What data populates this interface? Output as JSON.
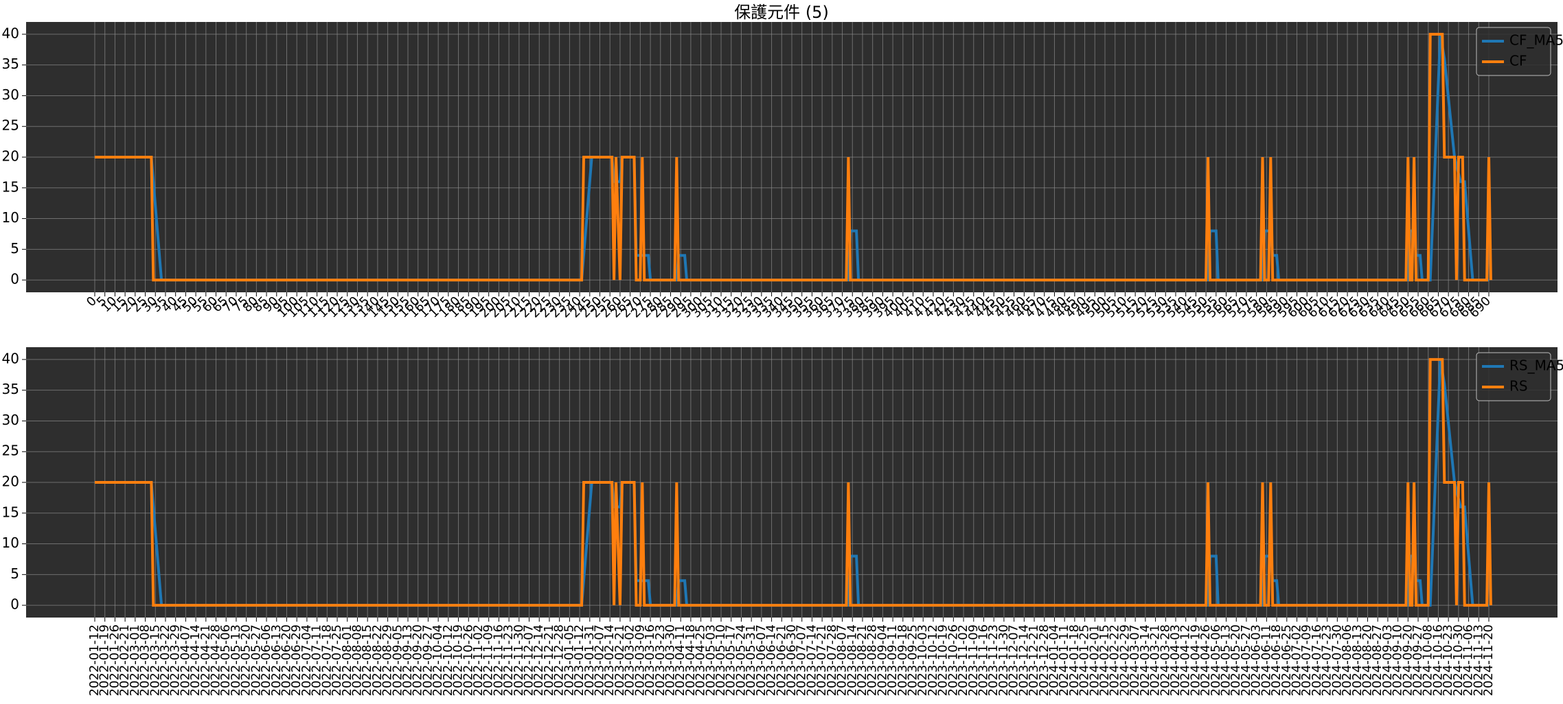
{
  "figure": {
    "title": "保護元件 (5)"
  },
  "colors": {
    "panel_bg": "#2e2e2e",
    "grid": "#8c8c8c",
    "ma_line": "#1f77b4",
    "raw_line": "#ff7f0e",
    "legend_bg": "#2e2e2e",
    "legend_edge": "#bdbdbd",
    "legend_text": "#000000"
  },
  "chart_data": [
    {
      "type": "line",
      "title": "保護元件 (5)",
      "xlabel": "",
      "ylabel": "",
      "x_range": [
        0,
        690
      ],
      "ylim": [
        -2,
        42
      ],
      "y_ticks": [
        0,
        5,
        10,
        15,
        20,
        25,
        30,
        35,
        40
      ],
      "grid": true,
      "legend_position": "top-right",
      "x_tick_labels": [
        "0",
        "5",
        "10",
        "15",
        "20",
        "25",
        "30",
        "35",
        "40",
        "45",
        "50",
        "55",
        "60",
        "65",
        "70",
        "75",
        "80",
        "85",
        "90",
        "95",
        "100",
        "105",
        "110",
        "115",
        "120",
        "125",
        "130",
        "135",
        "140",
        "145",
        "150",
        "155",
        "160",
        "165",
        "170",
        "175",
        "180",
        "185",
        "190",
        "195",
        "200",
        "205",
        "210",
        "215",
        "220",
        "225",
        "230",
        "235",
        "240",
        "245",
        "250",
        "255",
        "260",
        "265",
        "270",
        "275",
        "280",
        "285",
        "290",
        "295",
        "300",
        "305",
        "310",
        "315",
        "320",
        "325",
        "330",
        "335",
        "340",
        "345",
        "350",
        "355",
        "360",
        "365",
        "370",
        "375",
        "380",
        "385",
        "390",
        "395",
        "400",
        "405",
        "410",
        "415",
        "420",
        "425",
        "430",
        "435",
        "440",
        "445",
        "450",
        "455",
        "460",
        "465",
        "470",
        "475",
        "480",
        "485",
        "490",
        "495",
        "500",
        "505",
        "510",
        "515",
        "520",
        "525",
        "530",
        "535",
        "540",
        "545",
        "550",
        "555",
        "560",
        "565",
        "570",
        "575",
        "580",
        "585",
        "590",
        "595",
        "600",
        "605",
        "610",
        "615",
        "620",
        "625",
        "630",
        "635",
        "640",
        "645",
        "650",
        "655",
        "660",
        "665",
        "670",
        "675",
        "680",
        "685",
        "690"
      ],
      "series": [
        {
          "name": "CF",
          "points": [
            [
              0,
              20
            ],
            [
              28,
              20
            ],
            [
              29,
              0
            ],
            [
              241,
              0
            ],
            [
              242,
              20
            ],
            [
              256,
              20
            ],
            [
              257,
              0
            ],
            [
              258,
              20
            ],
            [
              260,
              0
            ],
            [
              261,
              20
            ],
            [
              267,
              20
            ],
            [
              268,
              0
            ],
            [
              270,
              0
            ],
            [
              271,
              20
            ],
            [
              272,
              0
            ],
            [
              287,
              0
            ],
            [
              288,
              20
            ],
            [
              289,
              0
            ],
            [
              372,
              0
            ],
            [
              373,
              20
            ],
            [
              374,
              0
            ],
            [
              550,
              0
            ],
            [
              551,
              20
            ],
            [
              552,
              0
            ],
            [
              577,
              0
            ],
            [
              578,
              20
            ],
            [
              579,
              0
            ],
            [
              581,
              0
            ],
            [
              582,
              20
            ],
            [
              583,
              0
            ],
            [
              649,
              0
            ],
            [
              650,
              20
            ],
            [
              651,
              0
            ],
            [
              652,
              0
            ],
            [
              653,
              20
            ],
            [
              654,
              0
            ],
            [
              660,
              0
            ],
            [
              661,
              40
            ],
            [
              667,
              40
            ],
            [
              668,
              20
            ],
            [
              673,
              20
            ],
            [
              674,
              0
            ],
            [
              675,
              20
            ],
            [
              677,
              20
            ],
            [
              678,
              0
            ],
            [
              689,
              0
            ],
            [
              690,
              20
            ],
            [
              691,
              0
            ]
          ]
        },
        {
          "name": "CF_MA5",
          "points": [
            [
              0,
              20
            ],
            [
              28,
              20
            ],
            [
              33,
              0
            ],
            [
              241,
              0
            ],
            [
              246,
              20
            ],
            [
              256,
              20
            ],
            [
              257,
              16
            ],
            [
              260,
              16
            ],
            [
              261,
              20
            ],
            [
              267,
              20
            ],
            [
              268,
              4
            ],
            [
              274,
              4
            ],
            [
              275,
              0
            ],
            [
              288,
              0
            ],
            [
              289,
              4
            ],
            [
              292,
              4
            ],
            [
              293,
              0
            ],
            [
              373,
              0
            ],
            [
              374,
              8
            ],
            [
              377,
              8
            ],
            [
              378,
              0
            ],
            [
              551,
              0
            ],
            [
              552,
              8
            ],
            [
              555,
              8
            ],
            [
              556,
              0
            ],
            [
              578,
              0
            ],
            [
              579,
              8
            ],
            [
              582,
              8
            ],
            [
              583,
              4
            ],
            [
              585,
              4
            ],
            [
              586,
              0
            ],
            [
              650,
              0
            ],
            [
              651,
              8
            ],
            [
              653,
              8
            ],
            [
              654,
              4
            ],
            [
              656,
              4
            ],
            [
              657,
              0
            ],
            [
              661,
              0
            ],
            [
              666,
              40
            ],
            [
              668,
              36
            ],
            [
              673,
              20
            ],
            [
              676,
              16
            ],
            [
              678,
              16
            ],
            [
              682,
              0
            ],
            [
              690,
              0
            ]
          ]
        }
      ]
    },
    {
      "type": "line",
      "title": "",
      "xlabel": "",
      "ylabel": "",
      "x_range": [
        "2022-01-12",
        "2024-11-20"
      ],
      "ylim": [
        -2,
        42
      ],
      "y_ticks": [
        0,
        5,
        10,
        15,
        20,
        25,
        30,
        35,
        40
      ],
      "grid": true,
      "legend_position": "top-right",
      "x_tick_labels": [
        "2022-01-12",
        "2022-01-19",
        "2022-01-26",
        "2022-02-21",
        "2022-03-01",
        "2022-03-08",
        "2022-03-15",
        "2022-03-22",
        "2022-03-29",
        "2022-04-07",
        "2022-04-14",
        "2022-04-21",
        "2022-04-28",
        "2022-05-06",
        "2022-05-13",
        "2022-05-20",
        "2022-05-27",
        "2022-06-06",
        "2022-06-13",
        "2022-06-20",
        "2022-06-29",
        "2022-07-04",
        "2022-07-11",
        "2022-07-18",
        "2022-07-25",
        "2022-08-01",
        "2022-08-08",
        "2022-08-15",
        "2022-08-22",
        "2022-08-29",
        "2022-09-05",
        "2022-09-13",
        "2022-09-20",
        "2022-09-27",
        "2022-10-04",
        "2022-10-12",
        "2022-10-19",
        "2022-10-26",
        "2022-11-02",
        "2022-11-09",
        "2022-11-16",
        "2022-11-23",
        "2022-11-30",
        "2022-12-07",
        "2022-12-14",
        "2022-12-21",
        "2022-12-28",
        "2023-01-05",
        "2023-01-12",
        "2023-01-31",
        "2023-02-07",
        "2023-02-14",
        "2023-02-21",
        "2023-03-02",
        "2023-03-09",
        "2023-03-16",
        "2023-03-23",
        "2023-03-30",
        "2023-04-11",
        "2023-04-18",
        "2023-04-25",
        "2023-05-03",
        "2023-05-10",
        "2023-05-17",
        "2023-05-24",
        "2023-05-31",
        "2023-06-07",
        "2023-06-14",
        "2023-06-21",
        "2023-06-30",
        "2023-07-07",
        "2023-07-14",
        "2023-07-21",
        "2023-07-28",
        "2023-08-07",
        "2023-08-14",
        "2023-08-21",
        "2023-08-28",
        "2023-09-04",
        "2023-09-11",
        "2023-09-18",
        "2023-09-25",
        "2023-10-03",
        "2023-10-12",
        "2023-10-19",
        "2023-10-26",
        "2023-11-02",
        "2023-11-09",
        "2023-11-16",
        "2023-11-23",
        "2023-11-30",
        "2023-12-07",
        "2023-12-14",
        "2023-12-21",
        "2023-12-28",
        "2024-01-04",
        "2024-01-11",
        "2024-01-18",
        "2024-01-25",
        "2024-02-01",
        "2024-02-15",
        "2024-02-22",
        "2024-02-29",
        "2024-03-07",
        "2024-03-14",
        "2024-03-21",
        "2024-03-28",
        "2024-04-03",
        "2024-04-12",
        "2024-04-19",
        "2024-04-26",
        "2024-05-06",
        "2024-05-13",
        "2024-05-20",
        "2024-05-27",
        "2024-06-03",
        "2024-06-11",
        "2024-06-18",
        "2024-06-25",
        "2024-07-02",
        "2024-07-09",
        "2024-07-16",
        "2024-07-23",
        "2024-07-30",
        "2024-08-06",
        "2024-08-13",
        "2024-08-20",
        "2024-08-27",
        "2024-09-03",
        "2024-09-10",
        "2024-09-20",
        "2024-09-27",
        "2024-10-08",
        "2024-10-16",
        "2024-10-23",
        "2024-10-30",
        "2024-11-06",
        "2024-11-13",
        "2024-11-20"
      ],
      "series": [
        {
          "name": "RS",
          "points": [
            [
              0,
              20
            ],
            [
              28,
              20
            ],
            [
              29,
              0
            ],
            [
              241,
              0
            ],
            [
              242,
              20
            ],
            [
              256,
              20
            ],
            [
              257,
              0
            ],
            [
              258,
              20
            ],
            [
              260,
              0
            ],
            [
              261,
              20
            ],
            [
              267,
              20
            ],
            [
              268,
              0
            ],
            [
              270,
              0
            ],
            [
              271,
              20
            ],
            [
              272,
              0
            ],
            [
              287,
              0
            ],
            [
              288,
              20
            ],
            [
              289,
              0
            ],
            [
              372,
              0
            ],
            [
              373,
              20
            ],
            [
              374,
              0
            ],
            [
              550,
              0
            ],
            [
              551,
              20
            ],
            [
              552,
              0
            ],
            [
              577,
              0
            ],
            [
              578,
              20
            ],
            [
              579,
              0
            ],
            [
              581,
              0
            ],
            [
              582,
              20
            ],
            [
              583,
              0
            ],
            [
              649,
              0
            ],
            [
              650,
              20
            ],
            [
              651,
              0
            ],
            [
              652,
              0
            ],
            [
              653,
              20
            ],
            [
              654,
              0
            ],
            [
              660,
              0
            ],
            [
              661,
              40
            ],
            [
              667,
              40
            ],
            [
              668,
              20
            ],
            [
              673,
              20
            ],
            [
              674,
              0
            ],
            [
              675,
              20
            ],
            [
              677,
              20
            ],
            [
              678,
              0
            ],
            [
              689,
              0
            ],
            [
              690,
              20
            ],
            [
              691,
              0
            ]
          ]
        },
        {
          "name": "RS_MA5",
          "points": [
            [
              0,
              20
            ],
            [
              28,
              20
            ],
            [
              33,
              0
            ],
            [
              241,
              0
            ],
            [
              246,
              20
            ],
            [
              256,
              20
            ],
            [
              257,
              16
            ],
            [
              260,
              16
            ],
            [
              261,
              20
            ],
            [
              267,
              20
            ],
            [
              268,
              4
            ],
            [
              274,
              4
            ],
            [
              275,
              0
            ],
            [
              288,
              0
            ],
            [
              289,
              4
            ],
            [
              292,
              4
            ],
            [
              293,
              0
            ],
            [
              373,
              0
            ],
            [
              374,
              8
            ],
            [
              377,
              8
            ],
            [
              378,
              0
            ],
            [
              551,
              0
            ],
            [
              552,
              8
            ],
            [
              555,
              8
            ],
            [
              556,
              0
            ],
            [
              578,
              0
            ],
            [
              579,
              8
            ],
            [
              582,
              8
            ],
            [
              583,
              4
            ],
            [
              585,
              4
            ],
            [
              586,
              0
            ],
            [
              650,
              0
            ],
            [
              651,
              8
            ],
            [
              653,
              8
            ],
            [
              654,
              4
            ],
            [
              656,
              4
            ],
            [
              657,
              0
            ],
            [
              661,
              0
            ],
            [
              666,
              40
            ],
            [
              668,
              36
            ],
            [
              673,
              20
            ],
            [
              676,
              16
            ],
            [
              678,
              16
            ],
            [
              682,
              0
            ],
            [
              690,
              0
            ]
          ]
        }
      ],
      "legend_entries": [
        "RS_MA5",
        "RS"
      ]
    }
  ],
  "legends": [
    [
      "CF_MA5",
      "CF"
    ],
    [
      "RS_MA5",
      "RS"
    ]
  ]
}
